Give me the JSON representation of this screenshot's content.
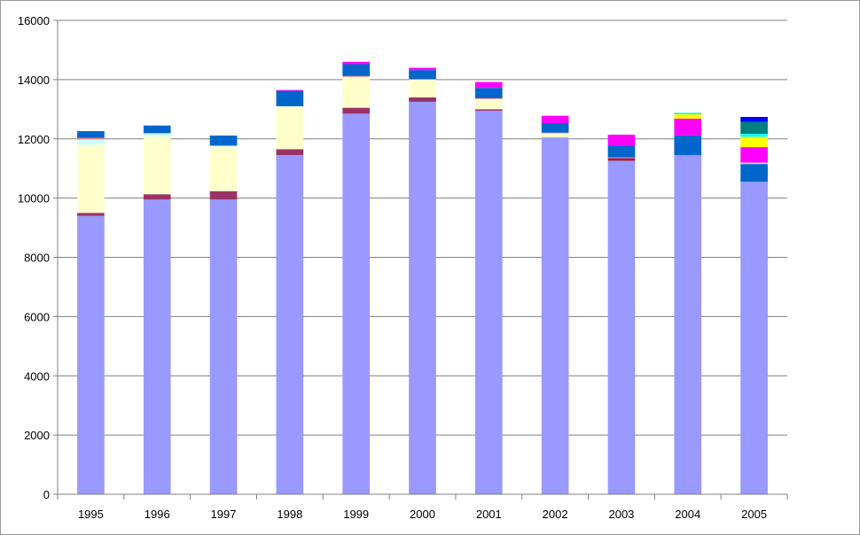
{
  "chart_data": {
    "type": "bar",
    "stacked": true,
    "title": "",
    "xlabel": "",
    "ylabel": "",
    "ylim": [
      0,
      16000
    ],
    "yticks": [
      0,
      2000,
      4000,
      6000,
      8000,
      10000,
      12000,
      14000,
      16000
    ],
    "grid": true,
    "legend": "none",
    "categories": [
      "1995",
      "1996",
      "1997",
      "1998",
      "1999",
      "2000",
      "2001",
      "2002",
      "2003",
      "2004",
      "2005"
    ],
    "series": [
      {
        "color": "#9999ff",
        "values": [
          9400,
          9950,
          9950,
          11450,
          12850,
          13250,
          12950,
          12050,
          11250,
          11450,
          10550
        ]
      },
      {
        "color": "#993366",
        "values": [
          100,
          180,
          280,
          200,
          200,
          150,
          50,
          0,
          50,
          0,
          0
        ]
      },
      {
        "color": "#ffffcc",
        "values": [
          2300,
          1950,
          1500,
          1450,
          1050,
          600,
          350,
          150,
          0,
          0,
          0
        ]
      },
      {
        "color": "#ccffff",
        "values": [
          180,
          100,
          30,
          0,
          0,
          0,
          0,
          0,
          0,
          0,
          0
        ]
      },
      {
        "color": "#660066",
        "values": [
          0,
          0,
          0,
          0,
          0,
          0,
          0,
          0,
          40,
          0,
          0
        ]
      },
      {
        "color": "#ff8080",
        "values": [
          50,
          20,
          20,
          0,
          20,
          20,
          20,
          10,
          30,
          0,
          0
        ]
      },
      {
        "color": "#0066cc",
        "values": [
          230,
          250,
          330,
          520,
          400,
          300,
          350,
          320,
          400,
          670,
          600
        ]
      },
      {
        "color": "#ccccff",
        "values": [
          0,
          0,
          0,
          0,
          0,
          0,
          0,
          0,
          0,
          0,
          50
        ]
      },
      {
        "color": "#ff00ff",
        "values": [
          0,
          0,
          0,
          30,
          80,
          80,
          200,
          250,
          370,
          560,
          520
        ]
      },
      {
        "color": "#ffff00",
        "values": [
          0,
          0,
          0,
          0,
          0,
          0,
          0,
          0,
          0,
          150,
          350
        ]
      },
      {
        "color": "#00ffff",
        "values": [
          0,
          0,
          0,
          0,
          0,
          0,
          0,
          0,
          0,
          50,
          100
        ]
      },
      {
        "color": "#008080",
        "values": [
          0,
          0,
          0,
          0,
          0,
          0,
          0,
          0,
          0,
          0,
          400
        ]
      },
      {
        "color": "#0000ff",
        "values": [
          0,
          0,
          0,
          0,
          0,
          0,
          0,
          0,
          0,
          0,
          170
        ]
      }
    ]
  }
}
